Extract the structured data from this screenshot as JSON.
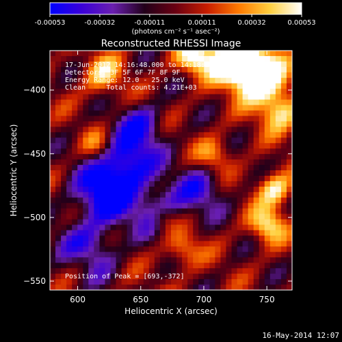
{
  "colors": {
    "background": "#000000",
    "text": "#ffffff",
    "colorbar_stops": [
      "#0000ff",
      "#3a00d8",
      "#6a1fb0",
      "#22001a",
      "#6a0012",
      "#c81e00",
      "#ff7a00",
      "#ffd040",
      "#ffffff"
    ]
  },
  "colorbar": {
    "ticks": [
      "-0.00053",
      "-0.00032",
      "-0.00011",
      "0.00011",
      "0.00032",
      "0.00053"
    ],
    "tick_values": [
      -0.00053,
      -0.00032,
      -0.00011,
      0.00011,
      0.00032,
      0.00053
    ],
    "range": [
      -0.00053,
      0.00053
    ],
    "units": "(photons cm⁻² s⁻¹ asec⁻²)"
  },
  "chart_data": {
    "type": "heatmap",
    "title": "Reconstructed RHESSI Image",
    "xlabel": "Heliocentric X (arcsec)",
    "ylabel": "Heliocentric Y (arcsec)",
    "xlim": [
      578,
      770
    ],
    "ylim": [
      -557,
      -369
    ],
    "xticks": [
      600,
      650,
      700,
      750
    ],
    "xtick_labels": [
      "600",
      "650",
      "700",
      "750"
    ],
    "yticks": [
      -550,
      -500,
      -450,
      -400
    ],
    "ytick_labels": [
      "−550",
      "−500",
      "−450",
      "−400"
    ],
    "grid": false,
    "colormap": "blue-purple-black-red-yellow-white",
    "peak_position": [
      693,
      -372
    ],
    "annotations": [
      "17-Jun-2012 14:16:48.000 to 14:18:36.000",
      "Detectors: 3F 5F 6F 7F 8F 9F",
      "Energy Range: 12.0 - 25.0 keV",
      "Clean     Total counts: 4.21E+03",
      "Position of Peak = [693,-372]"
    ]
  },
  "footer": {
    "timestamp": "16-May-2014 12:07"
  }
}
